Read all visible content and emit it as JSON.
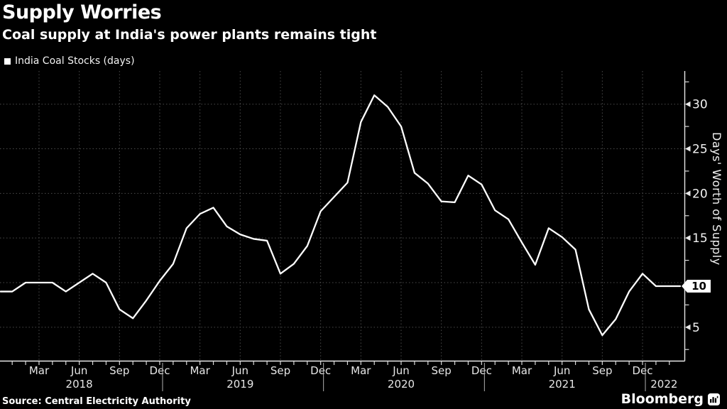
{
  "header": {
    "title": "Supply Worries",
    "subtitle": "Coal supply at India's power plants remains tight"
  },
  "legend": {
    "swatch_color": "#ffffff",
    "label": "India Coal Stocks (days)"
  },
  "source": "Source: Central Electricity Authority",
  "branding": {
    "logo_text": "Bloomberg",
    "logo_icon": "bloomberg-terminal-icon"
  },
  "colors": {
    "background": "#000000",
    "line": "#ffffff",
    "grid": "#4b4b4b",
    "text": "#f2f2f2",
    "marker_bg": "#ffffff",
    "marker_text": "#000000"
  },
  "chart_data": {
    "type": "line",
    "title": "Supply Worries",
    "subtitle": "Coal supply at India's power plants remains tight",
    "ylabel": "Days' Worth of Supply",
    "xlabel": "",
    "grid": true,
    "legend_position": "top-left",
    "y_axis_position": "right",
    "ylim": [
      1.2,
      33.7
    ],
    "y_ticks": [
      5,
      10,
      15,
      20,
      25,
      30
    ],
    "y_minor_step": 2.5,
    "x_month_labels": [
      "Mar",
      "Jun",
      "Sep",
      "Dec"
    ],
    "x_year_labels": [
      "2018",
      "2019",
      "2020",
      "2021",
      "2022"
    ],
    "current_value_marker": {
      "label": "10",
      "value": 9.6
    },
    "series": [
      {
        "name": "India Coal Stocks (days)",
        "points": [
          [
            "Dec 2017",
            9
          ],
          [
            "Jan 2018",
            9
          ],
          [
            "Feb 2018",
            10
          ],
          [
            "Mar 2018",
            10
          ],
          [
            "Apr 2018",
            10
          ],
          [
            "May 2018",
            9
          ],
          [
            "Jun 2018",
            10
          ],
          [
            "Jul 2018",
            11
          ],
          [
            "Aug 2018",
            10
          ],
          [
            "Sep 2018",
            7
          ],
          [
            "Oct 2018",
            6
          ],
          [
            "Nov 2018",
            8
          ],
          [
            "Dec 2018",
            10.2
          ],
          [
            "Jan 2019",
            12.1
          ],
          [
            "Feb 2019",
            16.1
          ],
          [
            "Mar 2019",
            17.7
          ],
          [
            "Apr 2019",
            18.4
          ],
          [
            "May 2019",
            16.3
          ],
          [
            "Jun 2019",
            15.4
          ],
          [
            "Jul 2019",
            14.9
          ],
          [
            "Aug 2019",
            14.7
          ],
          [
            "Sep 2019",
            11
          ],
          [
            "Oct 2019",
            12.1
          ],
          [
            "Nov 2019",
            14.1
          ],
          [
            "Dec 2019",
            18
          ],
          [
            "Jan 2020",
            19.6
          ],
          [
            "Feb 2020",
            21.2
          ],
          [
            "Mar 2020",
            28
          ],
          [
            "Apr 2020",
            31
          ],
          [
            "May 2020",
            29.7
          ],
          [
            "Jun 2020",
            27.5
          ],
          [
            "Jul 2020",
            22.3
          ],
          [
            "Aug 2020",
            21.1
          ],
          [
            "Sep 2020",
            19.1
          ],
          [
            "Oct 2020",
            19
          ],
          [
            "Nov 2020",
            22
          ],
          [
            "Dec 2020",
            21
          ],
          [
            "Jan 2021",
            18.1
          ],
          [
            "Feb 2021",
            17.1
          ],
          [
            "Mar 2021",
            14.5
          ],
          [
            "Apr 2021",
            12
          ],
          [
            "May 2021",
            16.1
          ],
          [
            "Jun 2021",
            15.1
          ],
          [
            "Jul 2021",
            13.7
          ],
          [
            "Aug 2021",
            7
          ],
          [
            "Sep 2021",
            4.1
          ],
          [
            "Oct 2021",
            5.9
          ],
          [
            "Nov 2021",
            9
          ],
          [
            "Dec 2021",
            11
          ],
          [
            "Jan 2022",
            9.6
          ],
          [
            "Feb 2022",
            9.6
          ]
        ]
      }
    ]
  }
}
